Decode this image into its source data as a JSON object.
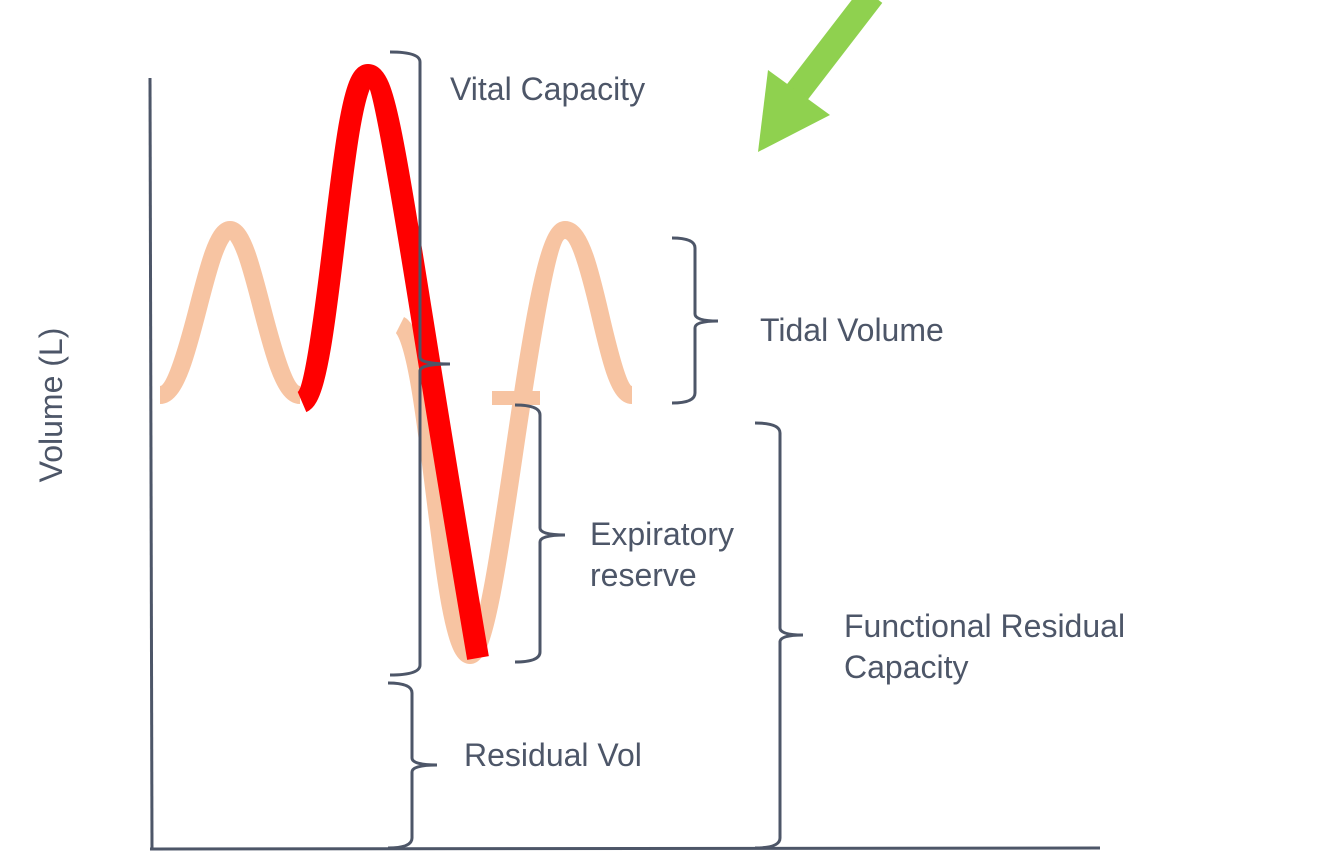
{
  "y_axis_label": "Volume (L)",
  "labels": {
    "vital_capacity": [
      "Vital Capacity"
    ],
    "tidal_volume": [
      "Tidal Volume"
    ],
    "expiratory_reserve": [
      "Expiratory",
      "reserve"
    ],
    "functional_residual_capacity": [
      "Functional Residual",
      "Capacity"
    ],
    "residual_volume": [
      "Residual Vol"
    ]
  }
}
